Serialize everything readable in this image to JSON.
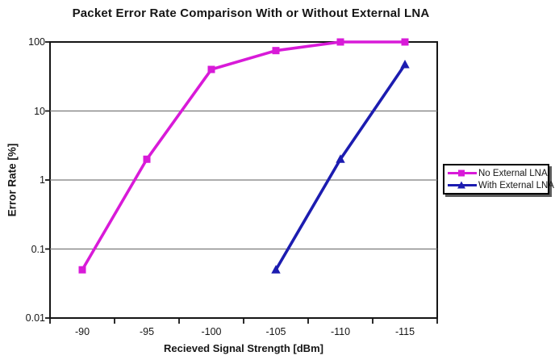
{
  "chart_data": {
    "type": "line",
    "title": "Packet Error Rate Comparison With or Without External LNA",
    "xlabel": "Recieved Signal Strength [dBm]",
    "ylabel": "Error Rate [%]",
    "x": [
      -90,
      -95,
      -100,
      -105,
      -110,
      -115
    ],
    "x_tick_labels": [
      "-90",
      "-95",
      "-100",
      "-105",
      "-110",
      "-115"
    ],
    "y_scale": "log",
    "ylim": [
      0.01,
      100
    ],
    "y_tick_labels": [
      "100",
      "10",
      "1",
      "0.1",
      "0.01"
    ],
    "grid": "horizontal-major",
    "legend_position": "right",
    "series": [
      {
        "name": "No External LNA",
        "color": "#d81ad8",
        "marker": "square",
        "values": [
          0.05,
          2,
          40,
          75,
          100,
          100
        ]
      },
      {
        "name": "With External LNA",
        "color": "#1c1cb0",
        "marker": "triangle",
        "values": [
          null,
          null,
          null,
          0.05,
          2,
          47
        ]
      }
    ]
  },
  "colors": {
    "axis": "#151515",
    "grid": "#7a7a7a",
    "background": "#ffffff"
  }
}
